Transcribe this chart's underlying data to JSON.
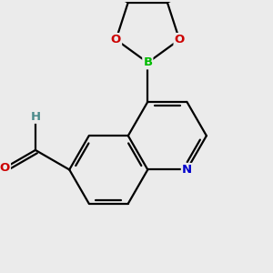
{
  "background_color": "#ebebeb",
  "bond_color": "#000000",
  "atom_colors": {
    "N": "#0000cc",
    "O": "#cc0000",
    "B": "#00bb00",
    "H": "#4a8a8a"
  },
  "bond_lw": 1.6,
  "figsize": [
    3.0,
    3.0
  ],
  "dpi": 100
}
